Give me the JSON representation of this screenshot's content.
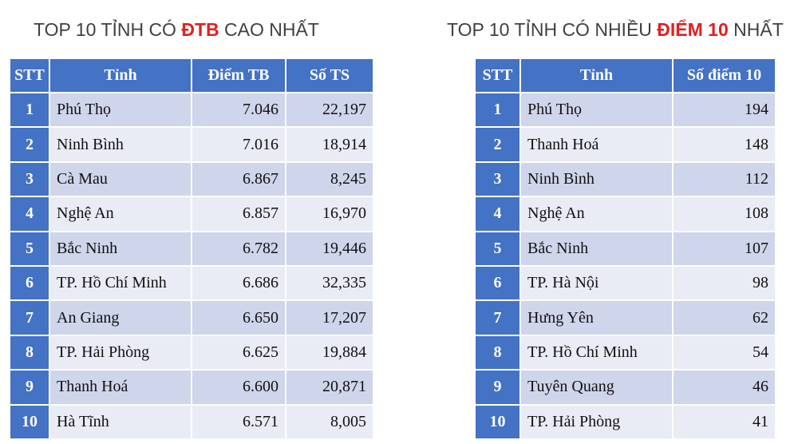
{
  "left": {
    "title": [
      "TOP 10 TỈNH CÓ ",
      "ĐTB",
      " CAO NHẤT"
    ],
    "header": [
      "STT",
      "Tỉnh",
      "Điểm TB",
      "Số TS"
    ],
    "rows": [
      [
        "1",
        "Phú Thọ",
        "7.046",
        "22,197"
      ],
      [
        "2",
        "Ninh Bình",
        "7.016",
        "18,914"
      ],
      [
        "3",
        "Cà Mau",
        "6.867",
        "8,245"
      ],
      [
        "4",
        "Nghệ An",
        "6.857",
        "16,970"
      ],
      [
        "5",
        "Bắc Ninh",
        "6.782",
        "19,446"
      ],
      [
        "6",
        "TP. Hồ Chí Minh",
        "6.686",
        "32,335"
      ],
      [
        "7",
        "An Giang",
        "6.650",
        "17,207"
      ],
      [
        "8",
        "TP. Hải Phòng",
        "6.625",
        "19,884"
      ],
      [
        "9",
        "Thanh Hoá",
        "6.600",
        "20,871"
      ],
      [
        "10",
        "Hà Tĩnh",
        "6.571",
        "8,005"
      ]
    ]
  },
  "right": {
    "title": [
      "TOP 10 TỈNH CÓ NHIỀU ",
      "ĐIỂM 10",
      " NHẤT"
    ],
    "header": [
      "STT",
      "Tỉnh",
      "Số điểm 10"
    ],
    "rows": [
      [
        "1",
        "Phú Thọ",
        "194"
      ],
      [
        "2",
        "Thanh Hoá",
        "148"
      ],
      [
        "3",
        "Ninh Bình",
        "112"
      ],
      [
        "4",
        "Nghệ An",
        "108"
      ],
      [
        "5",
        "Bắc Ninh",
        "107"
      ],
      [
        "6",
        "TP. Hà Nội",
        "98"
      ],
      [
        "7",
        "Hưng Yên",
        "62"
      ],
      [
        "8",
        "TP. Hồ Chí Minh",
        "54"
      ],
      [
        "9",
        "Tuyên Quang",
        "46"
      ],
      [
        "10",
        "TP. Hải Phòng",
        "41"
      ]
    ]
  }
}
